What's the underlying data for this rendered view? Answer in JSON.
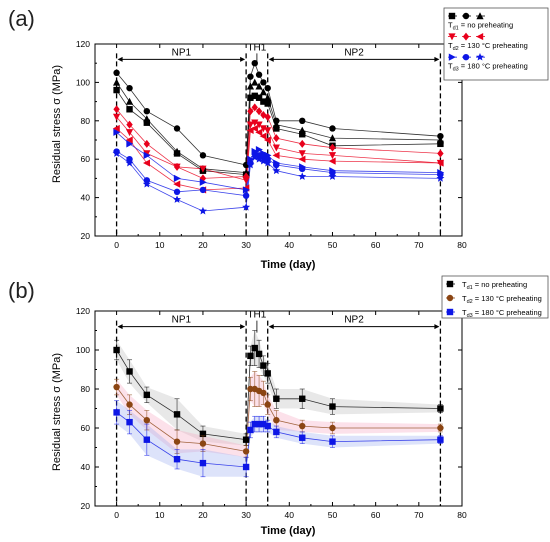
{
  "chart_data": [
    {
      "type": "line",
      "panel_label": "(a)",
      "xlabel": "Time (day)",
      "ylabel": "Residual stress σ (MPa)",
      "xlim": [
        -5,
        80
      ],
      "ylim": [
        20,
        120
      ],
      "xticks": [
        0,
        10,
        20,
        30,
        40,
        50,
        60,
        70,
        80
      ],
      "yticks": [
        20,
        40,
        60,
        80,
        100,
        120
      ],
      "legend_position": "top-right",
      "legend_groups": [
        {
          "label": "T",
          "sub": "d1",
          "text": " = no preheating",
          "color": "#000000",
          "markers": [
            "square",
            "circle",
            "triangle"
          ]
        },
        {
          "label": "T",
          "sub": "d2",
          "text": " = 130 °C preheating",
          "color": "#e8001c",
          "markers": [
            "triangle-down",
            "diamond",
            "triangle-left"
          ]
        },
        {
          "label": "T",
          "sub": "d3",
          "text": " = 180 °C preheating",
          "color": "#0d16e6",
          "markers": [
            "triangle-right",
            "circle",
            "star"
          ]
        }
      ],
      "phases": [
        {
          "label": "NP1",
          "x_start": 0,
          "x_end": 30
        },
        {
          "label": "TH1",
          "x_start": 30,
          "x_end": 35
        },
        {
          "label": "NP2",
          "x_start": 35,
          "x_end": 75
        }
      ],
      "series": [
        {
          "group": 1,
          "color": "#000000",
          "marker": "square",
          "x": [
            0,
            3,
            7,
            14,
            20,
            30,
            31,
            32,
            33,
            34,
            35,
            37,
            43,
            50,
            75
          ],
          "y": [
            96,
            86,
            79,
            63,
            54,
            52,
            92,
            93,
            92,
            90,
            89,
            76,
            73,
            67,
            68
          ]
        },
        {
          "group": 1,
          "color": "#000000",
          "marker": "circle",
          "x": [
            0,
            3,
            7,
            14,
            20,
            30,
            31,
            32,
            33,
            34,
            35,
            37,
            43,
            50,
            75
          ],
          "y": [
            105,
            97,
            85,
            76,
            62,
            57,
            103,
            110,
            104,
            100,
            97,
            80,
            80,
            76,
            72
          ]
        },
        {
          "group": 1,
          "color": "#000000",
          "marker": "triangle",
          "x": [
            0,
            3,
            7,
            14,
            20,
            30,
            31,
            32,
            33,
            34,
            35,
            37,
            43,
            50,
            75
          ],
          "y": [
            100,
            90,
            81,
            64,
            55,
            53,
            98,
            100,
            98,
            95,
            92,
            78,
            75,
            71,
            70
          ]
        },
        {
          "group": 2,
          "color": "#e8001c",
          "marker": "triangle-down",
          "x": [
            0,
            3,
            7,
            14,
            20,
            30,
            31,
            32,
            33,
            34,
            35,
            37,
            43,
            50,
            75
          ],
          "y": [
            82,
            74,
            63,
            56,
            55,
            49,
            78,
            79,
            78,
            76,
            75,
            66,
            63,
            62,
            58
          ]
        },
        {
          "group": 2,
          "color": "#e8001c",
          "marker": "diamond",
          "x": [
            0,
            3,
            7,
            14,
            20,
            30,
            31,
            32,
            33,
            34,
            35,
            37,
            43,
            50,
            75
          ],
          "y": [
            86,
            78,
            68,
            56,
            50,
            51,
            85,
            87,
            85,
            83,
            82,
            71,
            68,
            66,
            63
          ]
        },
        {
          "group": 2,
          "color": "#e8001c",
          "marker": "triangle-left",
          "x": [
            0,
            3,
            7,
            14,
            20,
            30,
            31,
            32,
            33,
            34,
            35,
            37,
            43,
            50,
            75
          ],
          "y": [
            76,
            70,
            58,
            47,
            44,
            45,
            75,
            76,
            74,
            72,
            70,
            62,
            60,
            59,
            58
          ]
        },
        {
          "group": 3,
          "color": "#0d16e6",
          "marker": "triangle-right",
          "x": [
            0,
            3,
            7,
            14,
            20,
            30,
            31,
            32,
            33,
            34,
            35,
            37,
            43,
            50,
            75
          ],
          "y": [
            74,
            68,
            62,
            50,
            48,
            44,
            60,
            64,
            65,
            63,
            62,
            58,
            56,
            54,
            53
          ]
        },
        {
          "group": 3,
          "color": "#0d16e6",
          "marker": "circle",
          "x": [
            0,
            3,
            7,
            14,
            20,
            30,
            31,
            32,
            33,
            34,
            35,
            37,
            43,
            50,
            75
          ],
          "y": [
            64,
            60,
            49,
            43,
            44,
            41,
            58,
            63,
            62,
            61,
            60,
            57,
            55,
            53,
            52
          ]
        },
        {
          "group": 3,
          "color": "#0d16e6",
          "marker": "star",
          "x": [
            0,
            3,
            7,
            14,
            20,
            30,
            31,
            32,
            33,
            34,
            35,
            37,
            43,
            50,
            75
          ],
          "y": [
            63,
            58,
            47,
            39,
            33,
            35,
            57,
            61,
            60,
            59,
            58,
            54,
            51,
            51,
            50
          ]
        }
      ]
    },
    {
      "type": "line",
      "panel_label": "(b)",
      "xlabel": "Time (day)",
      "ylabel": "Residual stress σ (MPa)",
      "xlim": [
        -5,
        80
      ],
      "ylim": [
        20,
        120
      ],
      "xticks": [
        0,
        10,
        20,
        30,
        40,
        50,
        60,
        70,
        80
      ],
      "yticks": [
        20,
        40,
        60,
        80,
        100,
        120
      ],
      "legend_position": "top-right",
      "legend_groups": [
        {
          "label": "T",
          "sub": "d1",
          "text": " = no preheating",
          "color": "#000000",
          "markers": [
            "square"
          ]
        },
        {
          "label": "T",
          "sub": "d2",
          "text": " = 130 °C preheating",
          "color": "#8b4513",
          "markers": [
            "circle"
          ]
        },
        {
          "label": "T",
          "sub": "d3",
          "text": " = 180 °C preheating",
          "color": "#0d16e6",
          "markers": [
            "square"
          ]
        }
      ],
      "phases": [
        {
          "label": "NP1",
          "x_start": 0,
          "x_end": 30
        },
        {
          "label": "TH1",
          "x_start": 30,
          "x_end": 35
        },
        {
          "label": "NP2",
          "x_start": 35,
          "x_end": 75
        }
      ],
      "series": [
        {
          "group": 1,
          "color": "#000000",
          "marker": "square",
          "band": "#bdbdbd",
          "x": [
            0,
            3,
            7,
            14,
            20,
            30,
            31,
            32,
            33,
            34,
            35,
            37,
            43,
            50,
            75
          ],
          "y": [
            100,
            89,
            77,
            67,
            57,
            54,
            97,
            101,
            98,
            92,
            88,
            75,
            75,
            71,
            70
          ],
          "err": [
            5,
            6,
            4,
            8,
            4,
            3,
            5,
            9,
            7,
            5,
            5,
            5,
            5,
            4,
            2
          ]
        },
        {
          "group": 2,
          "color": "#8b4513",
          "marker": "circle",
          "band": "#f6a8c4",
          "x": [
            0,
            3,
            7,
            14,
            20,
            30,
            31,
            32,
            33,
            34,
            35,
            37,
            43,
            50,
            75
          ],
          "y": [
            81,
            72,
            64,
            53,
            52,
            48,
            80,
            80,
            79,
            78,
            72,
            64,
            61,
            60,
            60
          ],
          "err": [
            4,
            5,
            5,
            6,
            4,
            3,
            6,
            9,
            8,
            6,
            5,
            5,
            3,
            3,
            2
          ]
        },
        {
          "group": 3,
          "color": "#0d16e6",
          "marker": "square",
          "band": "#9fb0f0",
          "x": [
            0,
            3,
            7,
            14,
            20,
            30,
            31,
            32,
            33,
            34,
            35,
            37,
            43,
            50,
            75
          ],
          "y": [
            68,
            63,
            54,
            44,
            42,
            40,
            59,
            62,
            62,
            62,
            61,
            58,
            55,
            53,
            54
          ],
          "err": [
            6,
            6,
            8,
            5,
            7,
            5,
            4,
            4,
            4,
            4,
            3,
            3,
            3,
            3,
            2
          ]
        }
      ]
    }
  ]
}
